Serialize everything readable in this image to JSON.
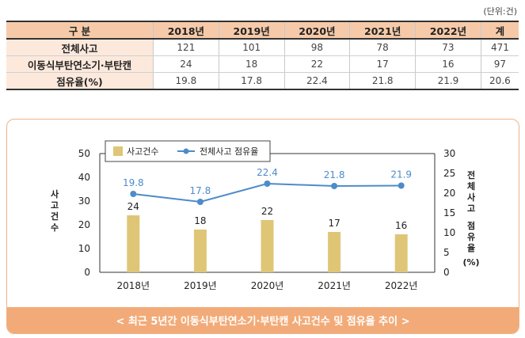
{
  "unit_label": "(단위:건)",
  "table": {
    "header": [
      "구 분",
      "2018년",
      "2019년",
      "2020년",
      "2021년",
      "2022년",
      "계"
    ],
    "rows": [
      {
        "label": "전체사고",
        "values": [
          "121",
          "101",
          "98",
          "78",
          "73",
          "471"
        ]
      },
      {
        "label": "이동식부탄연소기·부탄캔",
        "values": [
          "24",
          "18",
          "22",
          "17",
          "16",
          "97"
        ]
      },
      {
        "label": "점유율(%)",
        "values": [
          "19.8",
          "17.8",
          "22.4",
          "21.8",
          "21.9",
          "20.6"
        ]
      }
    ]
  },
  "chart_data": {
    "type": "bar",
    "categories": [
      "2018년",
      "2019년",
      "2020년",
      "2021년",
      "2022년"
    ],
    "series": [
      {
        "name": "사고건수",
        "type": "bar",
        "axis": "left",
        "values": [
          24,
          18,
          22,
          17,
          16
        ],
        "labels": [
          "24",
          "18",
          "22",
          "17",
          "16"
        ],
        "color": "#dfc677"
      },
      {
        "name": "전체사고 점유율",
        "type": "line",
        "axis": "right",
        "values": [
          19.8,
          17.8,
          22.4,
          21.8,
          21.9
        ],
        "labels": [
          "19.8",
          "17.8",
          "22.4",
          "21.8",
          "21.9"
        ],
        "color": "#4d8cc8"
      }
    ],
    "ylabel_left": "사고건수",
    "ylabel_right_top": "전체사고",
    "ylabel_right_bottom": "점유율",
    "ylabel_right_unit": "(%)",
    "ylim_left": [
      0,
      50
    ],
    "yticks_left": [
      "0",
      "10",
      "20",
      "30",
      "40",
      "50"
    ],
    "ylim_right": [
      0,
      30
    ],
    "yticks_right": [
      "0",
      "5",
      "10",
      "15",
      "20",
      "25",
      "30"
    ],
    "legend_position": "top-left",
    "caption": "< 최근 5년간 이동식부탄연소기·부탄캔 사고건수 및 점유율 추이 >"
  }
}
